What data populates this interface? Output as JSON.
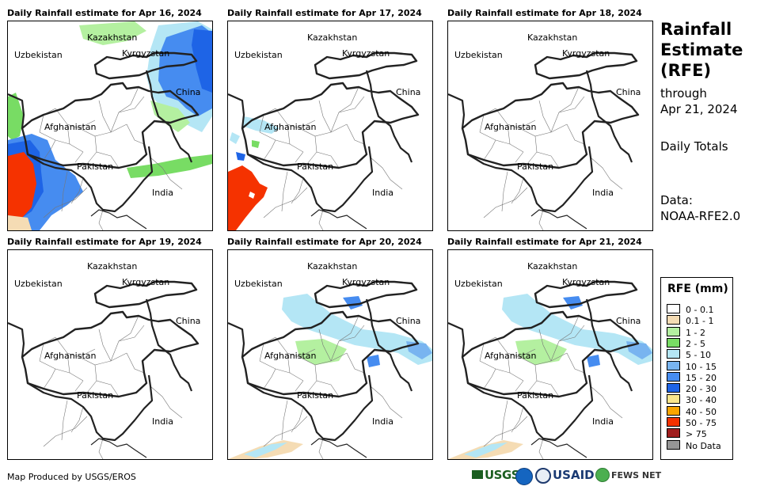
{
  "panels": [
    {
      "title": "Daily Rainfall estimate for Apr 16, 2024",
      "rain_level": "heavy"
    },
    {
      "title": "Daily Rainfall estimate for Apr 17, 2024",
      "rain_level": "moderate"
    },
    {
      "title": "Daily Rainfall estimate for Apr 18, 2024",
      "rain_level": "none"
    },
    {
      "title": "Daily Rainfall estimate for Apr 19, 2024",
      "rain_level": "none"
    },
    {
      "title": "Daily Rainfall estimate for Apr 20, 2024",
      "rain_level": "light"
    },
    {
      "title": "Daily Rainfall estimate for Apr 21, 2024",
      "rain_level": "light"
    }
  ],
  "map_labels": {
    "kazakhstan": "Kazakhstan",
    "uzbekistan": "Uzbekistan",
    "kyrgyzstan": "Kyrgyzstan",
    "china": "China",
    "afghanistan": "Afghanistan",
    "pakistan": "Pakistan",
    "india": "India"
  },
  "side": {
    "title_line1": "Rainfall",
    "title_line2": "Estimate",
    "title_line3": "(RFE)",
    "through_line1": "through",
    "through_line2": "Apr 21, 2024",
    "period": "Daily Totals",
    "data_line1": "Data:",
    "data_line2": "NOAA-RFE2.0"
  },
  "legend": {
    "title": "RFE (mm)",
    "items": [
      {
        "label": "0 - 0.1",
        "color": "#ffffff"
      },
      {
        "label": "0.1 - 1",
        "color": "#f5dcb4"
      },
      {
        "label": "1 - 2",
        "color": "#b4f0a0"
      },
      {
        "label": "2 - 5",
        "color": "#78dc64"
      },
      {
        "label": "5 - 10",
        "color": "#b4e6f5"
      },
      {
        "label": "10 - 15",
        "color": "#78b4f0"
      },
      {
        "label": "15 - 20",
        "color": "#468cf0"
      },
      {
        "label": "20 - 30",
        "color": "#1e64e6"
      },
      {
        "label": "30 - 40",
        "color": "#fae68c"
      },
      {
        "label": "40 - 50",
        "color": "#faa500"
      },
      {
        "label": "50 - 75",
        "color": "#f53200"
      },
      {
        "label": "> 75",
        "color": "#a01e1e"
      },
      {
        "label": "No Data",
        "color": "#969696"
      }
    ]
  },
  "footer": {
    "credit": "Map Produced by USGS/EROS",
    "logos": [
      "USGS",
      "NOAA",
      "DOS",
      "USAID",
      "FEWS NET"
    ]
  }
}
